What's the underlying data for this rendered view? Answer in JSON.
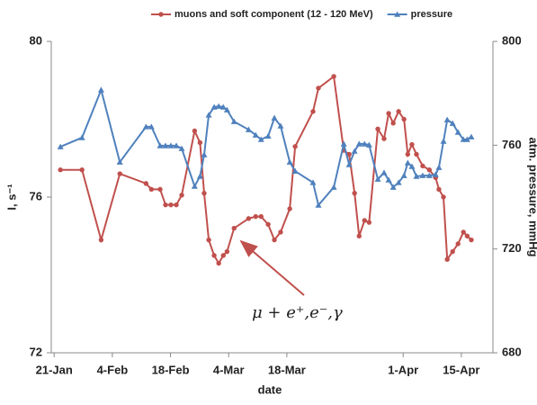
{
  "chart_data": {
    "type": "line",
    "x_label": "date",
    "y_label": "I, s⁻¹",
    "y2_label": "atm. pressure, mmHg",
    "annotation": "μ + e⁺,e⁻,γ",
    "xlim": [
      20.3,
      126.6
    ],
    "xticks": [
      {
        "value": 21,
        "label": "21-Jan"
      },
      {
        "value": 35,
        "label": "4-Feb"
      },
      {
        "value": 49,
        "label": "18-Feb"
      },
      {
        "value": 63,
        "label": "4-Mar"
      },
      {
        "value": 77,
        "label": "18-Mar"
      },
      {
        "value": 105,
        "label": "1-Apr"
      },
      {
        "value": 119,
        "label": "15-Apr"
      }
    ],
    "ylim": [
      72,
      80
    ],
    "yticks": [
      72,
      76,
      80
    ],
    "y2lim": [
      680,
      800
    ],
    "y2ticks": [
      680,
      720,
      760,
      800
    ],
    "legend": "top",
    "x": [
      22.5,
      27.7,
      32.3,
      36.8,
      43.1,
      44.4,
      46.5,
      47.8,
      49.1,
      50.4,
      51.7,
      54.8,
      56.1,
      57.1,
      58.2,
      59.5,
      60.6,
      61.7,
      62.6,
      64.3,
      67.8,
      69.5,
      70.8,
      72.5,
      74.0,
      75.5,
      77.7,
      79.0,
      83.3,
      84.6,
      88.3,
      90.7,
      92.0,
      93.3,
      94.4,
      95.7,
      96.8,
      98.9,
      100.4,
      101.5,
      102.6,
      103.9,
      105.2,
      106.1,
      107.1,
      108.2,
      109.7,
      111.3,
      112.8,
      113.6,
      114.7,
      115.6,
      116.9,
      118.2,
      119.5,
      120.4,
      121.4
    ],
    "series": [
      {
        "name": "muons and soft component (12 - 120  MeV)",
        "color": "#c0504d",
        "marker": "circle",
        "values": [
          76.7,
          76.7,
          74.9,
          76.6,
          76.35,
          76.2,
          76.2,
          75.8,
          75.8,
          75.8,
          76.05,
          77.7,
          77.4,
          76.1,
          74.9,
          74.5,
          74.3,
          74.5,
          74.6,
          75.2,
          75.45,
          75.5,
          75.5,
          75.3,
          74.9,
          75.1,
          75.7,
          77.3,
          78.2,
          78.8,
          79.1,
          77.2,
          77.1,
          76.1,
          75.0,
          75.4,
          75.35,
          77.75,
          77.5,
          78.15,
          77.9,
          78.2,
          78.0,
          77.1,
          77.35,
          77.1,
          76.8,
          76.7,
          76.5,
          76.2,
          76.0,
          74.4,
          74.6,
          74.8,
          75.1,
          75.0,
          74.9
        ]
      },
      {
        "name": "pressure",
        "color": "#4f81bd",
        "marker": "triangle",
        "axis": "y2",
        "values": [
          759.4,
          762.9,
          781.3,
          753.5,
          767.1,
          767.1,
          759.8,
          759.8,
          759.8,
          759.8,
          758.7,
          744.2,
          748.0,
          756.3,
          771.6,
          774.7,
          775.0,
          774.7,
          773.6,
          769.1,
          766.0,
          763.9,
          762.2,
          763.5,
          770.5,
          767.4,
          753.5,
          750.0,
          745.6,
          736.9,
          743.8,
          760.5,
          752.5,
          757.7,
          760.5,
          760.5,
          760.1,
          746.9,
          749.4,
          746.6,
          743.8,
          745.6,
          748.3,
          753.2,
          751.8,
          748.0,
          748.3,
          748.3,
          748.7,
          751.4,
          761.5,
          769.8,
          768.4,
          765.0,
          762.2,
          762.2,
          763.2
        ]
      }
    ]
  }
}
